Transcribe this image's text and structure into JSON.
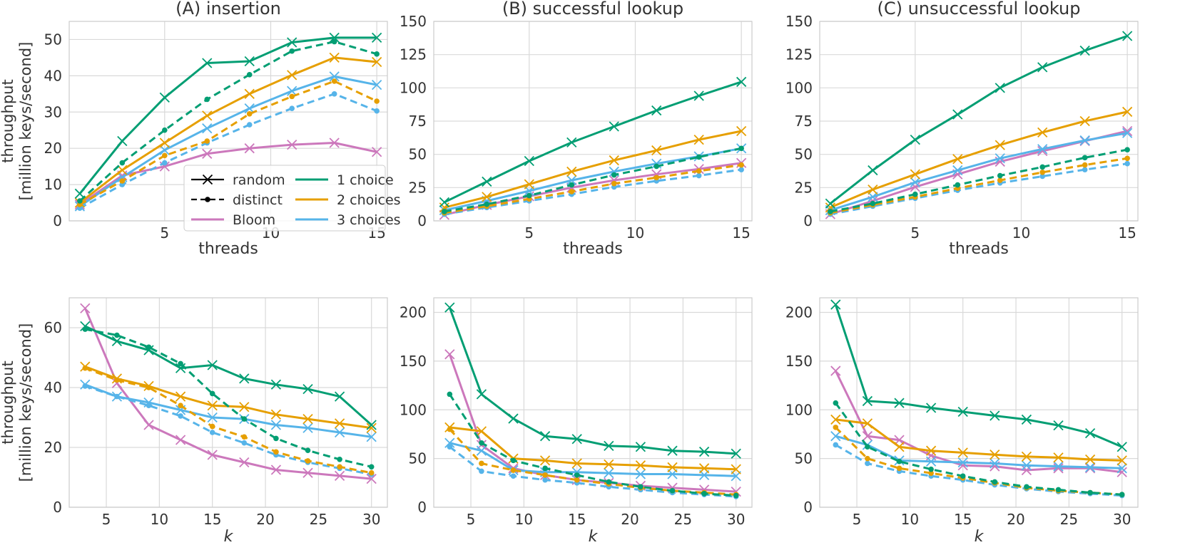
{
  "figure": {
    "ylabel_line1": "throughput",
    "ylabel_line2": "[million keys/second]",
    "legend": {
      "styles": [
        "random",
        "distinct"
      ],
      "series": [
        "1 choice",
        "2 choices",
        "3 choices"
      ],
      "bloom": "Bloom"
    },
    "colors": {
      "1 choice": "#029e73",
      "2 choices": "#e69f00",
      "3 choices": "#56b4e9",
      "Bloom": "#cc78bc"
    }
  },
  "chart_data": [
    {
      "type": "line",
      "title": "(A) insertion",
      "xlabel": "threads",
      "ylabel": "throughput [million keys/second]",
      "x": [
        1,
        3,
        5,
        7,
        9,
        11,
        13,
        15
      ],
      "xlim": [
        0.5,
        15.5
      ],
      "ylim": [
        0,
        55
      ],
      "xticks": [
        5,
        10,
        15
      ],
      "yticks": [
        0,
        10,
        20,
        30,
        40,
        50
      ],
      "series": [
        {
          "name": "1 choice",
          "style": "random",
          "values": [
            7.5,
            22,
            34,
            43.5,
            44,
            49.2,
            50.5,
            50.5
          ]
        },
        {
          "name": "1 choice",
          "style": "distinct",
          "values": [
            5.5,
            16,
            25,
            33.5,
            40.3,
            46.8,
            49.4,
            46
          ]
        },
        {
          "name": "2 choices",
          "style": "random",
          "values": [
            5,
            14,
            21.5,
            29,
            35,
            40.2,
            45,
            43.8
          ]
        },
        {
          "name": "2 choices",
          "style": "distinct",
          "values": [
            4.5,
            11,
            18,
            22,
            29.5,
            34.3,
            38.5,
            33
          ]
        },
        {
          "name": "3 choices",
          "style": "random",
          "values": [
            4,
            12,
            19.5,
            25.5,
            31,
            35.8,
            39.8,
            37.5
          ]
        },
        {
          "name": "3 choices",
          "style": "distinct",
          "values": [
            3.5,
            10,
            16,
            21.5,
            26.5,
            31,
            35,
            30.3
          ]
        },
        {
          "name": "Bloom",
          "style": "random",
          "values": [
            4.5,
            12.5,
            15,
            18.5,
            20,
            21,
            21.5,
            19
          ]
        }
      ]
    },
    {
      "type": "line",
      "title": "(B) successful lookup",
      "xlabel": "threads",
      "x": [
        1,
        3,
        5,
        7,
        9,
        11,
        13,
        15
      ],
      "xlim": [
        0.5,
        15.5
      ],
      "ylim": [
        0,
        150
      ],
      "xticks": [
        5,
        10,
        15
      ],
      "yticks": [
        0,
        25,
        50,
        75,
        100,
        125,
        150
      ],
      "series": [
        {
          "name": "1 choice",
          "style": "random",
          "values": [
            14,
            29.5,
            45,
            59,
            71,
            83,
            94,
            104.5
          ]
        },
        {
          "name": "1 choice",
          "style": "distinct",
          "values": [
            7,
            12.5,
            19,
            27,
            34.5,
            41,
            48,
            54.5
          ]
        },
        {
          "name": "2 choices",
          "style": "random",
          "values": [
            10,
            18,
            27.5,
            37,
            45.5,
            53,
            61,
            67.5
          ]
        },
        {
          "name": "2 choices",
          "style": "distinct",
          "values": [
            6,
            11,
            16.5,
            22,
            28,
            32.5,
            37.5,
            42
          ]
        },
        {
          "name": "3 choices",
          "style": "random",
          "values": [
            8,
            15,
            22.5,
            30.5,
            37,
            43,
            48.5,
            54.5
          ]
        },
        {
          "name": "3 choices",
          "style": "distinct",
          "values": [
            5,
            10,
            15,
            20,
            25.5,
            30,
            34,
            38.5
          ]
        },
        {
          "name": "Bloom",
          "style": "random",
          "values": [
            4.5,
            12,
            18.5,
            25,
            30.5,
            35,
            39,
            43.5
          ]
        }
      ]
    },
    {
      "type": "line",
      "title": "(C) unsuccessful lookup",
      "xlabel": "threads",
      "x": [
        1,
        3,
        5,
        7,
        9,
        11,
        13,
        15
      ],
      "xlim": [
        0.5,
        15.5
      ],
      "ylim": [
        0,
        150
      ],
      "xticks": [
        5,
        10,
        15
      ],
      "yticks": [
        0,
        25,
        50,
        75,
        100,
        125,
        150
      ],
      "series": [
        {
          "name": "1 choice",
          "style": "random",
          "values": [
            13,
            38,
            61,
            80,
            100,
            115.5,
            128,
            139
          ]
        },
        {
          "name": "1 choice",
          "style": "distinct",
          "values": [
            7,
            13,
            20,
            27,
            34,
            40.5,
            47.5,
            53.5
          ]
        },
        {
          "name": "2 choices",
          "style": "random",
          "values": [
            10,
            23.5,
            35,
            46.5,
            57,
            66.5,
            75,
            82
          ]
        },
        {
          "name": "2 choices",
          "style": "distinct",
          "values": [
            6,
            12,
            18,
            24.5,
            30.5,
            36.5,
            42,
            47
          ]
        },
        {
          "name": "3 choices",
          "style": "random",
          "values": [
            8,
            18,
            29,
            38,
            47,
            54,
            60.5,
            66
          ]
        },
        {
          "name": "3 choices",
          "style": "distinct",
          "values": [
            5,
            11,
            17,
            23,
            28.5,
            33.5,
            38.5,
            43
          ]
        },
        {
          "name": "Bloom",
          "style": "random",
          "values": [
            5,
            15,
            25.5,
            35,
            44.5,
            52.5,
            60,
            67.5
          ]
        }
      ]
    },
    {
      "type": "line",
      "title": "",
      "xlabel": "k",
      "ylabel": "throughput [million keys/second]",
      "x": [
        3,
        6,
        9,
        12,
        15,
        18,
        21,
        24,
        27,
        30
      ],
      "xlim": [
        1.5,
        31.5
      ],
      "ylim": [
        0,
        70
      ],
      "xticks": [
        5,
        10,
        15,
        20,
        25,
        30
      ],
      "yticks": [
        0,
        20,
        40,
        60
      ],
      "series": [
        {
          "name": "1 choice",
          "style": "random",
          "values": [
            60.5,
            55.5,
            52.5,
            46.5,
            47.5,
            43,
            41,
            39.5,
            37,
            27.5
          ]
        },
        {
          "name": "1 choice",
          "style": "distinct",
          "values": [
            59.5,
            57.5,
            53.5,
            48,
            38,
            29.5,
            23,
            19,
            16,
            13.5
          ]
        },
        {
          "name": "2 choices",
          "style": "random",
          "values": [
            47,
            43,
            40.5,
            37,
            34,
            33.5,
            31,
            29.5,
            28,
            26.5
          ]
        },
        {
          "name": "2 choices",
          "style": "distinct",
          "values": [
            46.5,
            42.5,
            40,
            34,
            27,
            23.5,
            18.5,
            15.5,
            13.5,
            11.5
          ]
        },
        {
          "name": "3 choices",
          "style": "random",
          "values": [
            41,
            37,
            35,
            32.5,
            30,
            29.5,
            27.5,
            26.5,
            25,
            23.5
          ]
        },
        {
          "name": "3 choices",
          "style": "distinct",
          "values": [
            40.5,
            37,
            34,
            30.5,
            25,
            21.5,
            17.5,
            15,
            13,
            11
          ]
        },
        {
          "name": "Bloom",
          "style": "random",
          "values": [
            66.5,
            41.5,
            27.5,
            22.5,
            17.5,
            15,
            12.5,
            11.5,
            10.5,
            9.5
          ]
        }
      ]
    },
    {
      "type": "line",
      "title": "",
      "xlabel": "k",
      "x": [
        3,
        6,
        9,
        12,
        15,
        18,
        21,
        24,
        27,
        30
      ],
      "xlim": [
        1.5,
        31.5
      ],
      "ylim": [
        0,
        215
      ],
      "xticks": [
        5,
        10,
        15,
        20,
        25,
        30
      ],
      "yticks": [
        0,
        50,
        100,
        150,
        200
      ],
      "series": [
        {
          "name": "1 choice",
          "style": "random",
          "values": [
            205,
            116,
            91,
            73,
            70,
            63,
            62,
            58,
            57,
            55
          ]
        },
        {
          "name": "1 choice",
          "style": "distinct",
          "values": [
            116,
            66,
            48,
            40,
            33,
            26,
            21,
            17,
            14,
            12
          ]
        },
        {
          "name": "2 choices",
          "style": "random",
          "values": [
            82,
            78,
            50,
            48,
            45,
            44,
            43,
            41,
            40,
            39
          ]
        },
        {
          "name": "2 choices",
          "style": "distinct",
          "values": [
            80,
            45,
            38,
            33,
            28,
            24,
            20,
            17,
            15,
            13
          ]
        },
        {
          "name": "3 choices",
          "style": "random",
          "values": [
            66,
            58,
            38,
            36,
            36,
            35,
            34,
            34,
            33,
            32
          ]
        },
        {
          "name": "3 choices",
          "style": "distinct",
          "values": [
            62,
            37,
            32,
            28,
            25,
            21,
            18,
            15,
            13,
            11
          ]
        },
        {
          "name": "Bloom",
          "style": "random",
          "values": [
            157,
            64,
            40,
            33,
            28,
            25,
            22,
            20,
            18,
            16
          ]
        }
      ]
    },
    {
      "type": "line",
      "title": "",
      "xlabel": "k",
      "x": [
        3,
        6,
        9,
        12,
        15,
        18,
        21,
        24,
        27,
        30
      ],
      "xlim": [
        1.5,
        31.5
      ],
      "ylim": [
        0,
        215
      ],
      "xticks": [
        5,
        10,
        15,
        20,
        25,
        30
      ],
      "yticks": [
        0,
        50,
        100,
        150,
        200
      ],
      "series": [
        {
          "name": "1 choice",
          "style": "random",
          "values": [
            208,
            109,
            107,
            102,
            98,
            94,
            90,
            84,
            76,
            62
          ]
        },
        {
          "name": "1 choice",
          "style": "distinct",
          "values": [
            107,
            62,
            47,
            39,
            32,
            26,
            21,
            18,
            15,
            13
          ]
        },
        {
          "name": "2 choices",
          "style": "random",
          "values": [
            90,
            86,
            62,
            58,
            56,
            54,
            52,
            51,
            49,
            48
          ]
        },
        {
          "name": "2 choices",
          "style": "distinct",
          "values": [
            82,
            50,
            40,
            35,
            30,
            25,
            20,
            17,
            15,
            13
          ]
        },
        {
          "name": "3 choices",
          "style": "random",
          "values": [
            73,
            64,
            48,
            47,
            46,
            45,
            43,
            42,
            41,
            40
          ]
        },
        {
          "name": "3 choices",
          "style": "distinct",
          "values": [
            64,
            45,
            37,
            32,
            28,
            23,
            19,
            16,
            14,
            12
          ]
        },
        {
          "name": "Bloom",
          "style": "random",
          "values": [
            140,
            73,
            69,
            53,
            43,
            42,
            38,
            40,
            40,
            36
          ]
        }
      ]
    }
  ]
}
